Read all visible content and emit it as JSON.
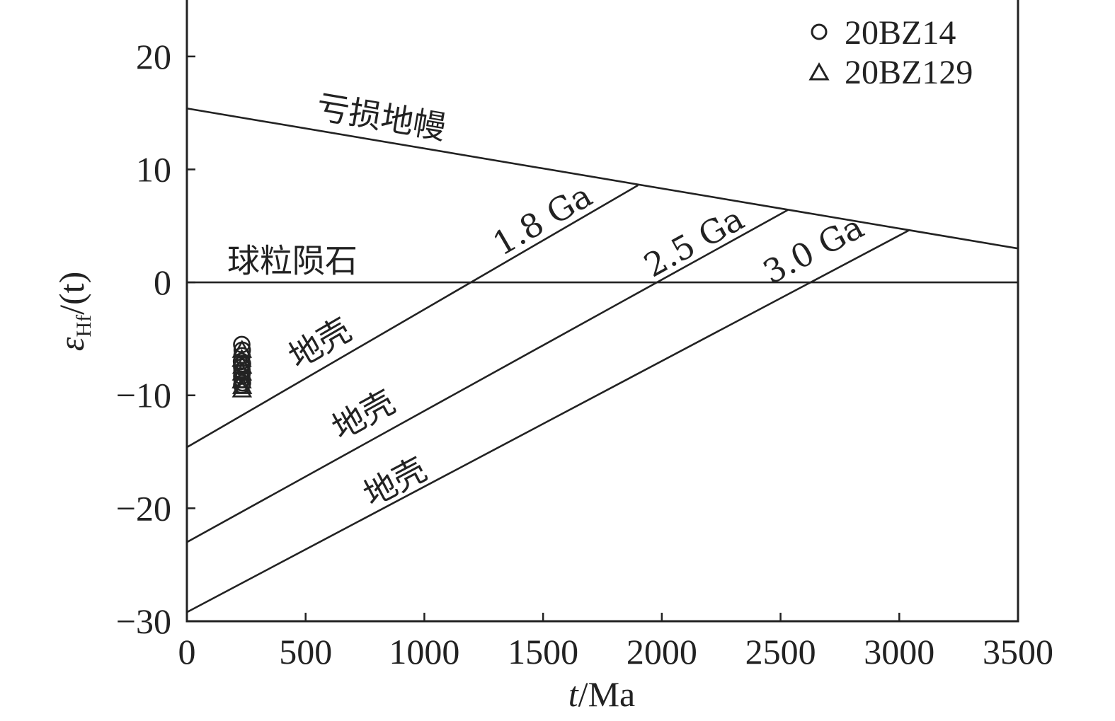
{
  "chart_data": {
    "type": "scatter",
    "xlabel_var": "t",
    "xlabel_unit": "/Ma",
    "ylabel_var": "ε",
    "ylabel_sub": "Hf",
    "ylabel_rest": "/(t)",
    "xlim": [
      0,
      3500
    ],
    "ylim": [
      -30,
      25
    ],
    "xticks": [
      0,
      500,
      1000,
      1500,
      2000,
      2500,
      3000,
      3500
    ],
    "yticks": [
      -30,
      -20,
      -10,
      0,
      10,
      20
    ],
    "ytick_labels": [
      "−30",
      "−20",
      "−10",
      "0",
      "10",
      "20"
    ],
    "grid": false,
    "legend_position": "top-right",
    "lines": [
      {
        "name": "亏损地幔",
        "x": [
          0,
          3500
        ],
        "y": [
          15.4,
          3.0
        ]
      },
      {
        "name": "球粒陨石",
        "x": [
          0,
          3500
        ],
        "y": [
          0,
          0
        ]
      },
      {
        "name": "1.8 Ga",
        "x": [
          0,
          1900
        ],
        "y": [
          -14.6,
          8.6
        ]
      },
      {
        "name": "2.5 Ga",
        "x": [
          0,
          2530
        ],
        "y": [
          -23.0,
          6.4
        ]
      },
      {
        "name": "3.0 Ga",
        "x": [
          0,
          3040
        ],
        "y": [
          -29.2,
          4.6
        ]
      }
    ],
    "labels": {
      "depleted_mantle": "亏损地幔",
      "chondrite": "球粒陨石",
      "crust_1": "地壳",
      "crust_2": "地壳",
      "crust_3": "地壳",
      "ga18": "1.8 Ga",
      "ga25": "2.5 Ga",
      "ga30": "3.0 Ga"
    },
    "series": [
      {
        "name": "20BZ14",
        "marker": "circle",
        "points": [
          [
            231,
            -5.5
          ],
          [
            233,
            -6.0
          ],
          [
            232,
            -6.5
          ],
          [
            230,
            -7.0
          ],
          [
            234,
            -7.2
          ],
          [
            231,
            -7.5
          ],
          [
            232,
            -7.8
          ],
          [
            233,
            -8.0
          ],
          [
            231,
            -8.3
          ],
          [
            232,
            -8.6
          ],
          [
            234,
            -8.9
          ],
          [
            231,
            -9.1
          ]
        ]
      },
      {
        "name": "20BZ129",
        "marker": "triangle",
        "points": [
          [
            232,
            -6.0
          ],
          [
            231,
            -6.8
          ],
          [
            233,
            -7.4
          ],
          [
            232,
            -8.0
          ],
          [
            231,
            -8.7
          ],
          [
            233,
            -9.2
          ],
          [
            232,
            -9.5
          ]
        ]
      }
    ]
  }
}
